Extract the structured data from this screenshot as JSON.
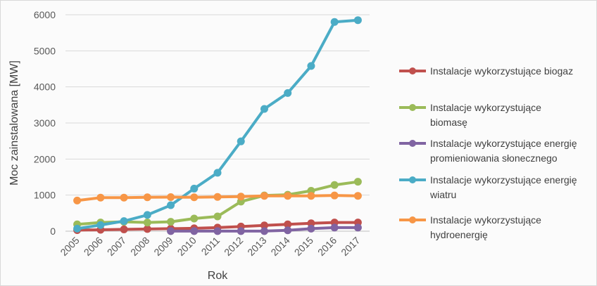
{
  "chart_data": {
    "type": "line",
    "title": "",
    "xlabel": "Rok",
    "ylabel": "Moc zainstalowana [MW]",
    "ylim": [
      0,
      6000
    ],
    "yticks": [
      "0",
      "1000",
      "2000",
      "3000",
      "4000",
      "5000",
      "6000"
    ],
    "grid": "horizontal",
    "legend_position": "right",
    "categories": [
      "2005",
      "2006",
      "2007",
      "2008",
      "2009",
      "2010",
      "2011",
      "2012",
      "2013",
      "2014",
      "2015",
      "2016",
      "2017"
    ],
    "series": [
      {
        "name": "Instalacje wykorzystujące biogaz",
        "legend_lines": [
          "Instalacje wykorzystujące biogaz"
        ],
        "color": "#c0504d",
        "values": [
          30,
          40,
          50,
          60,
          70,
          80,
          100,
          130,
          160,
          190,
          220,
          240,
          240
        ]
      },
      {
        "name": "Instalacje wykorzystujące biomasę",
        "legend_lines": [
          "Instalacje wykorzystujące",
          "biomasę"
        ],
        "color": "#9bbb59",
        "values": [
          190,
          240,
          260,
          240,
          260,
          350,
          410,
          820,
          990,
          1010,
          1120,
          1280,
          1370
        ]
      },
      {
        "name": "Instalacje wykorzystujące energię promieniowania słonecznego",
        "legend_lines": [
          "Instalacje wykorzystujące energię",
          "promieniowania słonecznego"
        ],
        "color": "#8064a2",
        "values": [
          null,
          null,
          null,
          null,
          2,
          2,
          2,
          2,
          3,
          25,
          70,
          100,
          100
        ]
      },
      {
        "name": "Instalacje wykorzystujące energię wiatru",
        "legend_lines": [
          "Instalacje wykorzystujące energię",
          "wiatru"
        ],
        "color": "#4bacc6",
        "values": [
          70,
          170,
          280,
          450,
          720,
          1180,
          1620,
          2490,
          3390,
          3830,
          4580,
          5800,
          5850
        ]
      },
      {
        "name": "Instalacje wykorzystujące hydroenergię",
        "legend_lines": [
          "Instalacje wykorzystujące",
          "hydroenergię"
        ],
        "color": "#f79646",
        "values": [
          850,
          930,
          930,
          940,
          945,
          940,
          950,
          960,
          980,
          980,
          980,
          990,
          980
        ]
      }
    ]
  }
}
